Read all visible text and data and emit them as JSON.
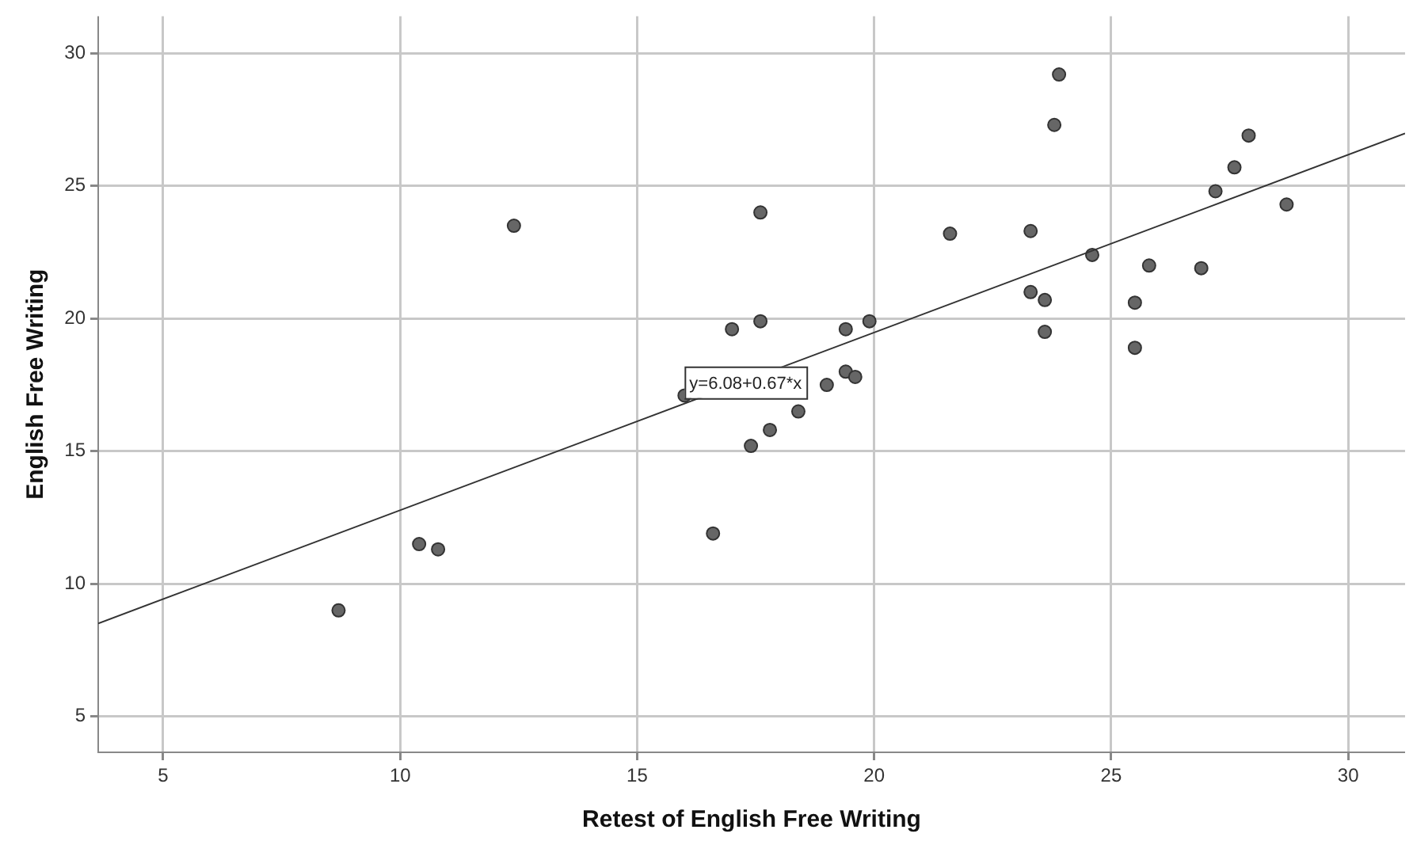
{
  "chart_data": {
    "type": "scatter",
    "xlabel": "Retest of English Free Writing",
    "ylabel": "English Free Writing",
    "xlim": [
      3.63,
      31.2
    ],
    "ylim": [
      3.65,
      31.4
    ],
    "xticks": [
      5,
      10,
      15,
      20,
      25,
      30
    ],
    "yticks": [
      5,
      10,
      15,
      20,
      25,
      30
    ],
    "grid": true,
    "legend": false,
    "series": [
      {
        "type": "scatter",
        "color": "#666666",
        "marker": "circle",
        "x": [
          12.4,
          17.0,
          16.0,
          16.6,
          10.4,
          10.8,
          8.7,
          17.6,
          17.6,
          19.4,
          19.9,
          19.0,
          19.4,
          19.6,
          18.4,
          17.8,
          17.4,
          21.6,
          23.3,
          23.9,
          23.8,
          23.3,
          23.6,
          23.6,
          24.6,
          25.5,
          25.5,
          25.8,
          26.9,
          27.2,
          27.6,
          27.9,
          28.7
        ],
        "values": [
          23.5,
          19.6,
          17.1,
          11.9,
          11.5,
          11.3,
          9.0,
          24.0,
          19.9,
          19.6,
          19.9,
          17.5,
          18.0,
          17.8,
          16.5,
          15.8,
          15.2,
          23.2,
          23.3,
          29.2,
          27.3,
          21.0,
          20.7,
          19.5,
          22.4,
          20.6,
          18.9,
          22.0,
          21.9,
          24.8,
          25.7,
          26.9,
          24.3
        ]
      },
      {
        "type": "line",
        "color": "#333333",
        "marker": "none",
        "x": [
          3.63,
          31.2
        ],
        "values": [
          8.51,
          26.98
        ]
      }
    ],
    "annotations": [
      {
        "text": "y=6.08+0.67*x",
        "x": 16.0,
        "y": 17.0
      }
    ]
  }
}
